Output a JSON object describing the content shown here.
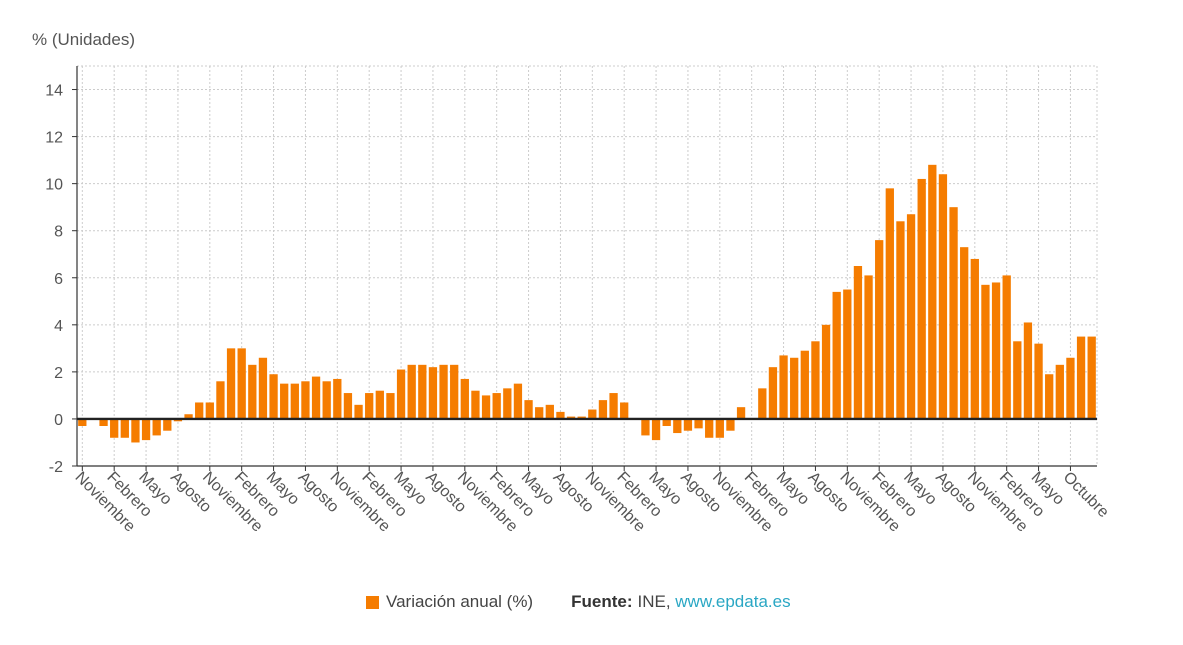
{
  "chart_data": {
    "type": "bar",
    "title": "",
    "ylabel": "% (Unidades)",
    "xlabel": "",
    "ylim": [
      -2,
      15
    ],
    "yticks": [
      -2,
      0,
      2,
      4,
      6,
      8,
      10,
      12,
      14
    ],
    "grid": true,
    "x_tick_labels": [
      "Noviembre",
      "Febrero",
      "Mayo",
      "Agosto",
      "Noviembre",
      "Febrero",
      "Mayo",
      "Agosto",
      "Noviembre",
      "Febrero",
      "Mayo",
      "Agosto",
      "Noviembre",
      "Febrero",
      "Mayo",
      "Agosto",
      "Noviembre",
      "Febrero",
      "Mayo",
      "Agosto",
      "Noviembre",
      "Febrero",
      "Mayo",
      "Agosto",
      "Noviembre",
      "Febrero",
      "Mayo",
      "Agosto",
      "Noviembre",
      "Febrero",
      "Mayo",
      "Octubre"
    ],
    "series": [
      {
        "name": "Variación anual (%)",
        "color": "#f57c00",
        "values": [
          -0.3,
          0.0,
          -0.3,
          -0.8,
          -0.8,
          -1.0,
          -0.9,
          -0.7,
          -0.5,
          -0.1,
          0.2,
          0.7,
          0.7,
          1.6,
          3.0,
          3.0,
          2.3,
          2.6,
          1.9,
          1.5,
          1.5,
          1.6,
          1.8,
          1.6,
          1.7,
          1.1,
          0.6,
          1.1,
          1.2,
          1.1,
          2.1,
          2.3,
          2.3,
          2.2,
          2.3,
          2.3,
          1.7,
          1.2,
          1.0,
          1.1,
          1.3,
          1.5,
          0.8,
          0.5,
          0.6,
          0.3,
          0.1,
          0.1,
          0.4,
          0.8,
          1.1,
          0.7,
          0.0,
          -0.7,
          -0.9,
          -0.3,
          -0.6,
          -0.5,
          -0.4,
          -0.8,
          -0.8,
          -0.5,
          0.5,
          0.0,
          1.3,
          2.2,
          2.7,
          2.6,
          2.9,
          3.3,
          4.0,
          5.4,
          5.5,
          6.5,
          6.1,
          7.6,
          9.8,
          8.4,
          8.7,
          10.2,
          10.8,
          10.4,
          9.0,
          7.3,
          6.8,
          5.7,
          5.8,
          6.1,
          3.3,
          4.1,
          3.2,
          1.9,
          2.3,
          2.6,
          3.5,
          3.5
        ]
      }
    ],
    "legend_position": "bottom",
    "source_label": "Fuente:",
    "source_value": "INE,",
    "source_link": "www.epdata.es",
    "colors": {
      "bar": "#f57c00",
      "grid": "#cccccc",
      "axis": "#222222",
      "link": "#2aa7c4"
    }
  }
}
